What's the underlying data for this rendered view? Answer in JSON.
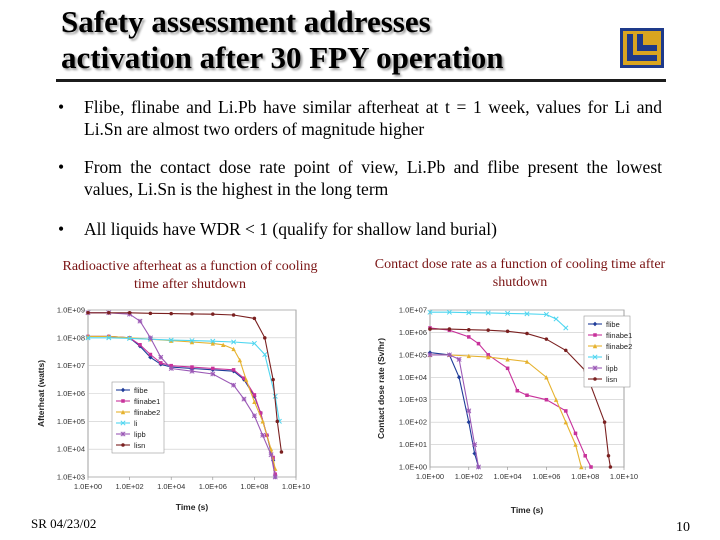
{
  "slide": {
    "title_line1": "Safety assessment addresses",
    "title_line2": "activation after 30 FPY operation",
    "bullets": [
      "Flibe, flinabe and Li.Pb have similar afterheat at t = 1 week, values for Li and Li.Sn are almost two orders of magnitude higher",
      "From the contact dose rate point of view, Li.Pb and flibe present the lowest values, Li.Sn is the highest in the long term",
      "All liquids have WDR < 1 (qualify for shallow land burial)"
    ],
    "bullet_glyph": "•",
    "caption_left": "Radioactive afterheat as a function of cooling time after shutdown",
    "caption_right": "Contact dose rate as a function of cooling time after shutdown",
    "footer_left": "SR 04/23/02",
    "page_number": "10",
    "logo_icon": "ll-logo-icon"
  },
  "chart_data": [
    {
      "type": "line",
      "title": "",
      "xlabel": "Time (s)",
      "ylabel": "Afterheat (watts)",
      "log_x": true,
      "log_y": true,
      "x_exponent_range": [
        0,
        10
      ],
      "y_exponent_range": [
        3,
        9
      ],
      "x_ticks": [
        "1.0E+00",
        "1.0E+02",
        "1.0E+04",
        "1.0E+06",
        "1.0E+08",
        "1.0E+10"
      ],
      "y_ticks": [
        "1.0E+03",
        "1.0E+04",
        "1.0E+05",
        "1.0E+06",
        "1.0E+07",
        "1.0E+08",
        "1.0E+09"
      ],
      "legend_position": "left",
      "grid": true,
      "series": [
        {
          "name": "flibe",
          "color": "#1f3c99",
          "marker": "diamond",
          "points": [
            [
              0,
              8.05
            ],
            [
              1,
              8.05
            ],
            [
              2,
              8.0
            ],
            [
              2.5,
              7.7
            ],
            [
              3,
              7.3
            ],
            [
              3.5,
              7.05
            ],
            [
              4,
              6.95
            ],
            [
              5,
              6.9
            ],
            [
              6,
              6.85
            ],
            [
              7,
              6.8
            ],
            [
              7.5,
              6.5
            ],
            [
              8,
              5.9
            ],
            [
              8.3,
              5.3
            ],
            [
              8.6,
              4.5
            ],
            [
              8.9,
              3.6
            ],
            [
              9,
              3.0
            ]
          ]
        },
        {
          "name": "flinabe1",
          "color": "#c8329b",
          "marker": "square",
          "points": [
            [
              0,
              8.05
            ],
            [
              1,
              8.05
            ],
            [
              2,
              8.0
            ],
            [
              2.5,
              7.75
            ],
            [
              3,
              7.4
            ],
            [
              3.5,
              7.1
            ],
            [
              4,
              7.0
            ],
            [
              5,
              6.95
            ],
            [
              6,
              6.9
            ],
            [
              7,
              6.85
            ],
            [
              7.5,
              6.55
            ],
            [
              8,
              5.95
            ],
            [
              8.3,
              5.3
            ],
            [
              8.6,
              4.5
            ],
            [
              8.9,
              3.7
            ],
            [
              9,
              3.1
            ]
          ]
        },
        {
          "name": "flinabe2",
          "color": "#e6b22e",
          "marker": "triangle",
          "points": [
            [
              0,
              8.05
            ],
            [
              1,
              8.05
            ],
            [
              2,
              8.0
            ],
            [
              3,
              7.95
            ],
            [
              4,
              7.9
            ],
            [
              5,
              7.85
            ],
            [
              6,
              7.8
            ],
            [
              6.5,
              7.75
            ],
            [
              7,
              7.6
            ],
            [
              7.3,
              7.2
            ],
            [
              7.6,
              6.5
            ],
            [
              8,
              5.7
            ],
            [
              8.4,
              5.0
            ],
            [
              8.8,
              4.0
            ],
            [
              9,
              3.3
            ]
          ]
        },
        {
          "name": "li",
          "color": "#4fd6f0",
          "marker": "x",
          "points": [
            [
              0,
              8.0
            ],
            [
              1,
              8.0
            ],
            [
              2,
              7.98
            ],
            [
              3,
              7.95
            ],
            [
              4,
              7.92
            ],
            [
              5,
              7.9
            ],
            [
              6,
              7.88
            ],
            [
              7,
              7.85
            ],
            [
              8,
              7.8
            ],
            [
              8.5,
              7.4
            ],
            [
              9,
              5.9
            ],
            [
              9.2,
              5.0
            ]
          ]
        },
        {
          "name": "lipb",
          "color": "#9b59b6",
          "marker": "star",
          "points": [
            [
              0,
              8.9
            ],
            [
              1,
              8.9
            ],
            [
              2,
              8.85
            ],
            [
              2.5,
              8.6
            ],
            [
              3,
              8.0
            ],
            [
              3.5,
              7.3
            ],
            [
              4,
              6.9
            ],
            [
              5,
              6.8
            ],
            [
              6,
              6.7
            ],
            [
              7,
              6.3
            ],
            [
              7.5,
              5.8
            ],
            [
              8,
              5.2
            ],
            [
              8.4,
              4.5
            ],
            [
              8.8,
              3.8
            ],
            [
              9,
              3.0
            ]
          ]
        },
        {
          "name": "lisn",
          "color": "#7a2020",
          "marker": "circle",
          "points": [
            [
              0,
              8.9
            ],
            [
              1,
              8.9
            ],
            [
              2,
              8.9
            ],
            [
              3,
              8.88
            ],
            [
              4,
              8.87
            ],
            [
              5,
              8.86
            ],
            [
              6,
              8.85
            ],
            [
              7,
              8.82
            ],
            [
              8,
              8.7
            ],
            [
              8.5,
              8.0
            ],
            [
              8.9,
              6.5
            ],
            [
              9.1,
              5.0
            ],
            [
              9.3,
              3.9
            ]
          ]
        }
      ]
    },
    {
      "type": "line",
      "title": "",
      "xlabel": "Time (s)",
      "ylabel": "Contact dose rate (Sv/hr)",
      "log_x": true,
      "log_y": true,
      "x_exponent_range": [
        0,
        10
      ],
      "y_exponent_range": [
        0,
        7
      ],
      "x_ticks": [
        "1.0E+00",
        "1.0E+02",
        "1.0E+04",
        "1.0E+06",
        "1.0E+08",
        "1.0E+10"
      ],
      "y_ticks": [
        "1.0E+00",
        "1.0E+01",
        "1.0E+02",
        "1.0E+03",
        "1.0E+04",
        "1.0E+05",
        "1.0E+06",
        "1.0E+07"
      ],
      "legend_position": "top-right",
      "grid": true,
      "series": [
        {
          "name": "flibe",
          "color": "#1f3c99",
          "marker": "diamond",
          "points": [
            [
              0,
              5.1
            ],
            [
              1,
              5.0
            ],
            [
              1.5,
              4.0
            ],
            [
              2,
              2.0
            ],
            [
              2.3,
              0.6
            ],
            [
              2.5,
              0.0
            ]
          ]
        },
        {
          "name": "flinabe1",
          "color": "#c8329b",
          "marker": "square",
          "points": [
            [
              0,
              6.2
            ],
            [
              1,
              6.1
            ],
            [
              2,
              5.8
            ],
            [
              2.5,
              5.5
            ],
            [
              3,
              5.0
            ],
            [
              4,
              4.4
            ],
            [
              4.5,
              3.4
            ],
            [
              5,
              3.2
            ],
            [
              6,
              3.0
            ],
            [
              7,
              2.5
            ],
            [
              7.5,
              1.5
            ],
            [
              8,
              0.5
            ],
            [
              8.3,
              0.0
            ]
          ]
        },
        {
          "name": "flinabe2",
          "color": "#e6b22e",
          "marker": "triangle",
          "points": [
            [
              0,
              5.0
            ],
            [
              1,
              5.0
            ],
            [
              2,
              4.95
            ],
            [
              3,
              4.9
            ],
            [
              4,
              4.8
            ],
            [
              5,
              4.7
            ],
            [
              6,
              4.0
            ],
            [
              6.5,
              3.0
            ],
            [
              7,
              2.0
            ],
            [
              7.5,
              1.0
            ],
            [
              7.8,
              0.0
            ]
          ]
        },
        {
          "name": "li",
          "color": "#4fd6f0",
          "marker": "x",
          "points": [
            [
              0,
              6.9
            ],
            [
              1,
              6.9
            ],
            [
              2,
              6.88
            ],
            [
              3,
              6.87
            ],
            [
              4,
              6.85
            ],
            [
              5,
              6.83
            ],
            [
              6,
              6.8
            ],
            [
              6.5,
              6.6
            ],
            [
              7,
              6.2
            ]
          ]
        },
        {
          "name": "lipb",
          "color": "#9b59b6",
          "marker": "star",
          "points": [
            [
              0,
              5.0
            ],
            [
              1,
              5.0
            ],
            [
              1.5,
              4.8
            ],
            [
              2,
              2.5
            ],
            [
              2.3,
              1.0
            ],
            [
              2.5,
              0.0
            ]
          ]
        },
        {
          "name": "lisn",
          "color": "#7a2020",
          "marker": "circle",
          "points": [
            [
              0,
              6.15
            ],
            [
              1,
              6.15
            ],
            [
              2,
              6.12
            ],
            [
              3,
              6.1
            ],
            [
              4,
              6.05
            ],
            [
              5,
              5.95
            ],
            [
              6,
              5.7
            ],
            [
              7,
              5.2
            ],
            [
              8,
              4.3
            ],
            [
              9,
              2.0
            ],
            [
              9.2,
              0.5
            ],
            [
              9.3,
              0.0
            ]
          ]
        }
      ]
    }
  ]
}
